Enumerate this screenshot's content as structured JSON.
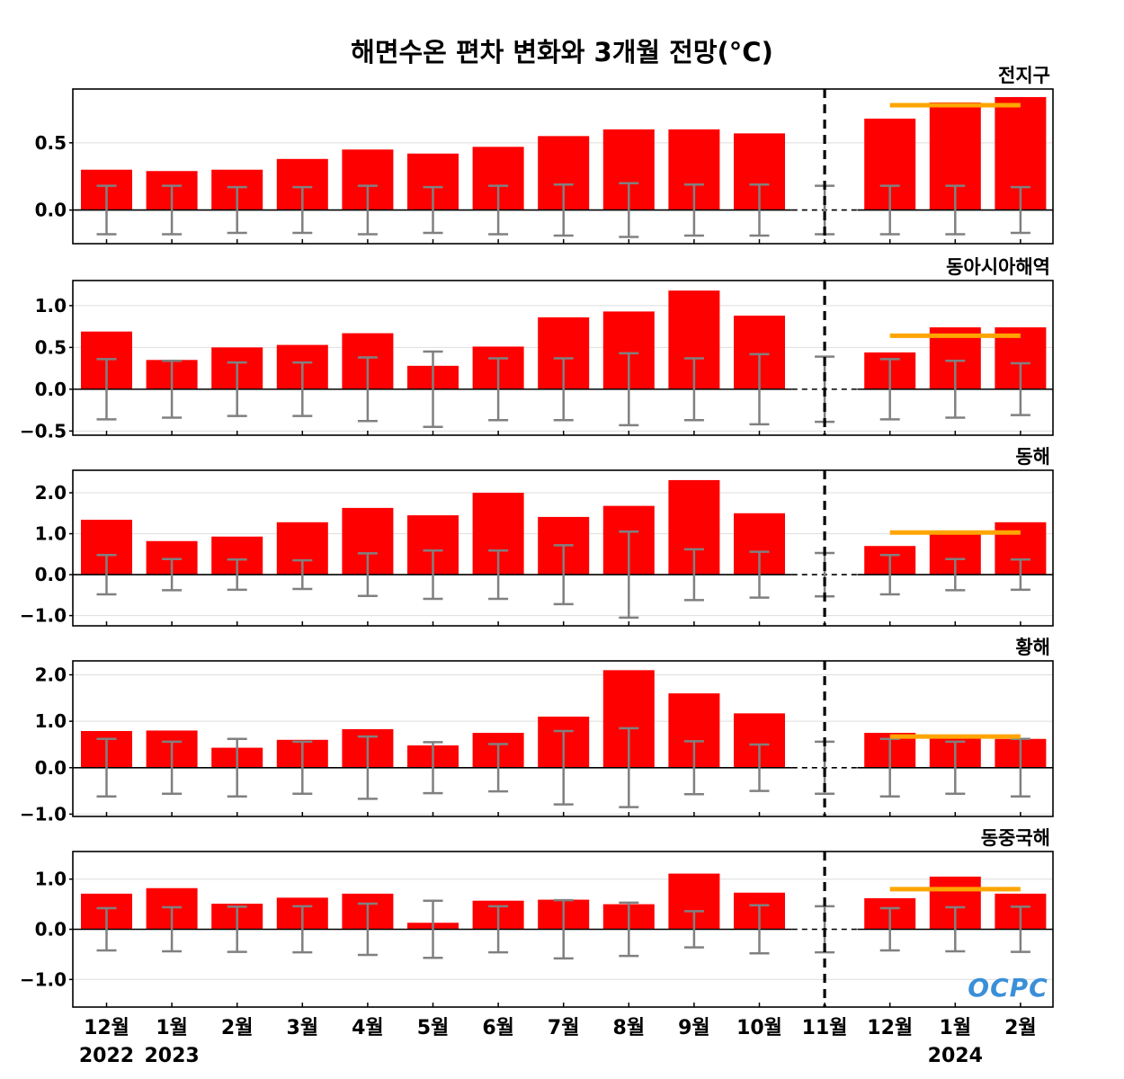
{
  "colors": {
    "bar": "#ff0000",
    "error_bar": "#808080",
    "forecast_line": "#ffa500",
    "grid": "#dddddd",
    "logo": "#3a8fd8"
  },
  "logo_text": "OCPC",
  "chart_data": {
    "type": "bar",
    "title": "해면수온 편차 변화와 3개월 전망(°C)",
    "categories": [
      "12월",
      "1월",
      "2월",
      "3월",
      "4월",
      "5월",
      "6월",
      "7월",
      "8월",
      "9월",
      "10월",
      "11월",
      "12월",
      "1월",
      "2월"
    ],
    "year_labels": [
      {
        "index": 0,
        "text": "2022"
      },
      {
        "index": 1,
        "text": "2023"
      },
      {
        "index": 13,
        "text": "2024"
      }
    ],
    "current_month_index": 11,
    "forecast_months": [
      12,
      13,
      14
    ],
    "panels": [
      {
        "name": "전지구",
        "ylim": [
          -0.25,
          0.9
        ],
        "yticks": [
          0.0,
          0.5
        ],
        "ytick_labels": [
          "0.0",
          "0.5"
        ],
        "values": [
          0.3,
          0.29,
          0.3,
          0.38,
          0.45,
          0.42,
          0.47,
          0.55,
          0.6,
          0.6,
          0.57,
          null,
          0.68,
          0.8,
          0.84
        ],
        "error_range": [
          0.18,
          0.18,
          0.17,
          0.17,
          0.18,
          0.17,
          0.18,
          0.19,
          0.2,
          0.19,
          0.19,
          0.18,
          0.18,
          0.18,
          0.17
        ],
        "forecast_value": 0.78
      },
      {
        "name": "동아시아해역",
        "ylim": [
          -0.55,
          1.3
        ],
        "yticks": [
          -0.5,
          0.0,
          0.5,
          1.0
        ],
        "ytick_labels": [
          "−0.5",
          "0.0",
          "0.5",
          "1.0"
        ],
        "values": [
          0.69,
          0.35,
          0.5,
          0.53,
          0.67,
          0.28,
          0.51,
          0.86,
          0.93,
          1.18,
          0.88,
          null,
          0.44,
          0.74,
          0.74
        ],
        "error_range": [
          0.36,
          0.34,
          0.32,
          0.32,
          0.38,
          0.45,
          0.37,
          0.37,
          0.43,
          0.37,
          0.42,
          0.39,
          0.36,
          0.34,
          0.31
        ],
        "forecast_value": 0.64
      },
      {
        "name": "동해",
        "ylim": [
          -1.25,
          2.55
        ],
        "yticks": [
          -1.0,
          0.0,
          1.0,
          2.0
        ],
        "ytick_labels": [
          "−1.0",
          "0.0",
          "1.0",
          "2.0"
        ],
        "values": [
          1.34,
          0.82,
          0.93,
          1.28,
          1.63,
          1.45,
          2.0,
          1.41,
          1.68,
          2.31,
          1.5,
          null,
          0.7,
          1.02,
          1.28
        ],
        "error_range": [
          0.48,
          0.38,
          0.37,
          0.35,
          0.52,
          0.59,
          0.59,
          0.72,
          1.05,
          0.62,
          0.56,
          0.53,
          0.48,
          0.38,
          0.37
        ],
        "forecast_value": 1.03
      },
      {
        "name": "황해",
        "ylim": [
          -1.05,
          2.3
        ],
        "yticks": [
          -1.0,
          0.0,
          1.0,
          2.0
        ],
        "ytick_labels": [
          "−1.0",
          "0.0",
          "1.0",
          "2.0"
        ],
        "values": [
          0.79,
          0.8,
          0.43,
          0.6,
          0.83,
          0.48,
          0.75,
          1.1,
          2.1,
          1.6,
          1.17,
          null,
          0.75,
          0.65,
          0.62
        ],
        "error_range": [
          0.62,
          0.56,
          0.62,
          0.56,
          0.67,
          0.55,
          0.51,
          0.79,
          0.85,
          0.57,
          0.5,
          0.56,
          0.62,
          0.56,
          0.62
        ],
        "forecast_value": 0.67
      },
      {
        "name": "동중국해",
        "ylim": [
          -1.55,
          1.55
        ],
        "yticks": [
          -1.0,
          0.0,
          1.0
        ],
        "ytick_labels": [
          "−1.0",
          "0.0",
          "1.0"
        ],
        "values": [
          0.71,
          0.82,
          0.51,
          0.63,
          0.71,
          0.13,
          0.57,
          0.59,
          0.5,
          1.11,
          0.73,
          null,
          0.62,
          1.05,
          0.71
        ],
        "error_range": [
          0.42,
          0.44,
          0.45,
          0.46,
          0.51,
          0.57,
          0.46,
          0.58,
          0.53,
          0.36,
          0.48,
          0.46,
          0.42,
          0.44,
          0.45
        ],
        "forecast_value": 0.8
      }
    ]
  }
}
